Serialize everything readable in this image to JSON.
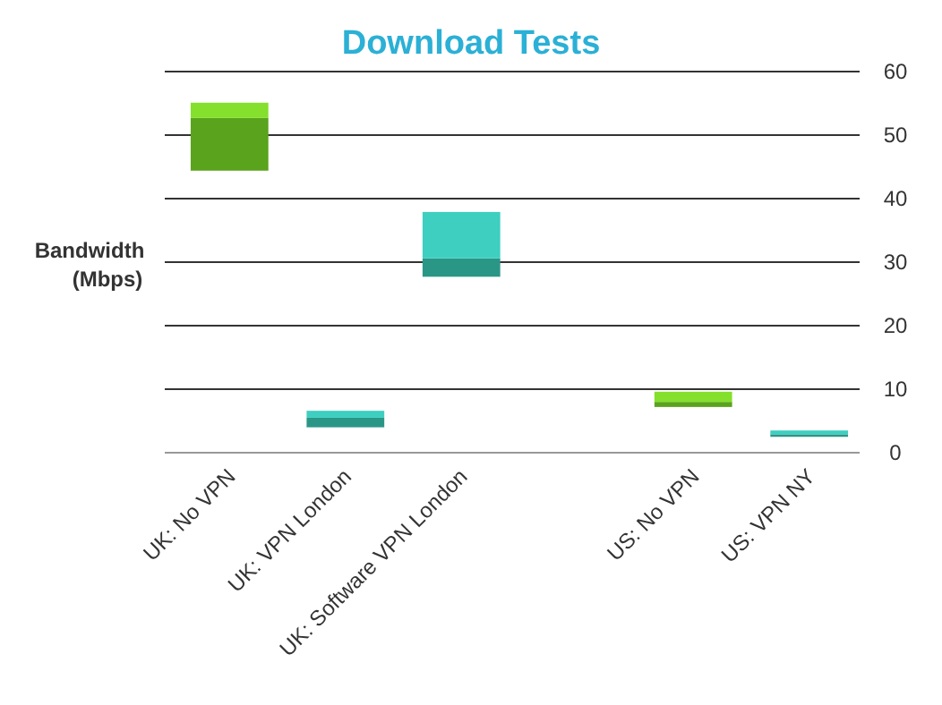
{
  "chart_data": {
    "type": "bar",
    "title": "Download Tests",
    "ylabel": "Bandwidth\n(Mbps)",
    "categories": [
      "UK: No VPN",
      "UK: VPN London",
      "UK: Software VPN London",
      null,
      "US: No VPN",
      "US: VPN NY"
    ],
    "series": [
      {
        "colors": [
          "#5aa31c",
          "#2a9686",
          "#2a9686",
          null,
          "#5aa31c",
          "#2a9686"
        ],
        "base": [
          44.4,
          4.0,
          27.7,
          null,
          7.2,
          2.5
        ],
        "values": [
          8.3,
          1.5,
          2.9,
          null,
          0.8,
          0.4
        ]
      },
      {
        "colors": [
          "#84e02c",
          "#3ecfc0",
          "#3ecfc0",
          null,
          "#84e02c",
          "#3ecfc0"
        ],
        "base": [
          52.7,
          5.5,
          30.6,
          null,
          8.0,
          2.9
        ],
        "values": [
          2.4,
          1.1,
          7.3,
          null,
          1.6,
          0.6
        ]
      }
    ],
    "ylim": [
      0,
      60
    ],
    "yticks": [
      0,
      10,
      20,
      30,
      40,
      50,
      60
    ],
    "grid": "y"
  }
}
